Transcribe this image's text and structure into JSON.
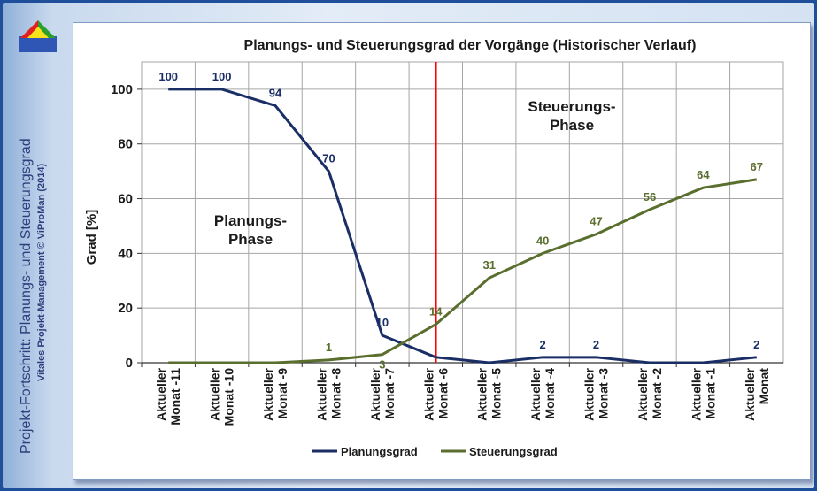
{
  "side_title": "Projekt-Fortschritt: Planungs- und Steuerungsgrad",
  "side_copyright": "Vitales Projekt-Management © ViProMan (2014)",
  "logo_icon": "vipro-triangle-logo-icon",
  "colors": {
    "planungsgrad": "#1a2e66",
    "steuerungsgrad": "#5a6e2e",
    "phase_divider": "#ff0000",
    "grid": "#a6a6a6"
  },
  "chart_data": {
    "type": "line",
    "title": "Planungs- und Steuerungsgrad der Vorgänge (Historischer Verlauf)",
    "xlabel": "",
    "ylabel": "Grad [%]",
    "ylim": [
      0,
      110
    ],
    "yticks": [
      0,
      20,
      40,
      60,
      80,
      100
    ],
    "grid": true,
    "legend": "bottom",
    "categories": [
      "Aktueller Monat -11",
      "Aktueller Monat -10",
      "Aktueller Monat -9",
      "Aktueller Monat -8",
      "Aktueller Monat -7",
      "Aktueller Monat -6",
      "Aktueller Monat -5",
      "Aktueller Monat -4",
      "Aktueller Monat -3",
      "Aktueller Monat -2",
      "Aktueller Monat -1",
      "Aktueller Monat"
    ],
    "series": [
      {
        "name": "Planungsgrad",
        "values": [
          100,
          100,
          94,
          70,
          10,
          2,
          0,
          2,
          2,
          0,
          0,
          2
        ],
        "labels": [
          "100",
          "100",
          "94",
          "70",
          "10",
          "",
          "",
          "2",
          "2",
          "",
          "",
          "2"
        ]
      },
      {
        "name": "Steuerungsgrad",
        "values": [
          0,
          0,
          0,
          1,
          3,
          14,
          31,
          40,
          47,
          56,
          64,
          67
        ],
        "labels": [
          "",
          "",
          "",
          "1",
          "3",
          "14",
          "31",
          "40",
          "47",
          "56",
          "64",
          "67"
        ]
      }
    ],
    "divider_category_index": 5,
    "annotations": [
      {
        "name": "planungs-phase",
        "lines": [
          "Planungs-",
          "Phase"
        ]
      },
      {
        "name": "steuerungs-phase",
        "lines": [
          "Steuerungs-",
          "Phase"
        ]
      }
    ]
  }
}
